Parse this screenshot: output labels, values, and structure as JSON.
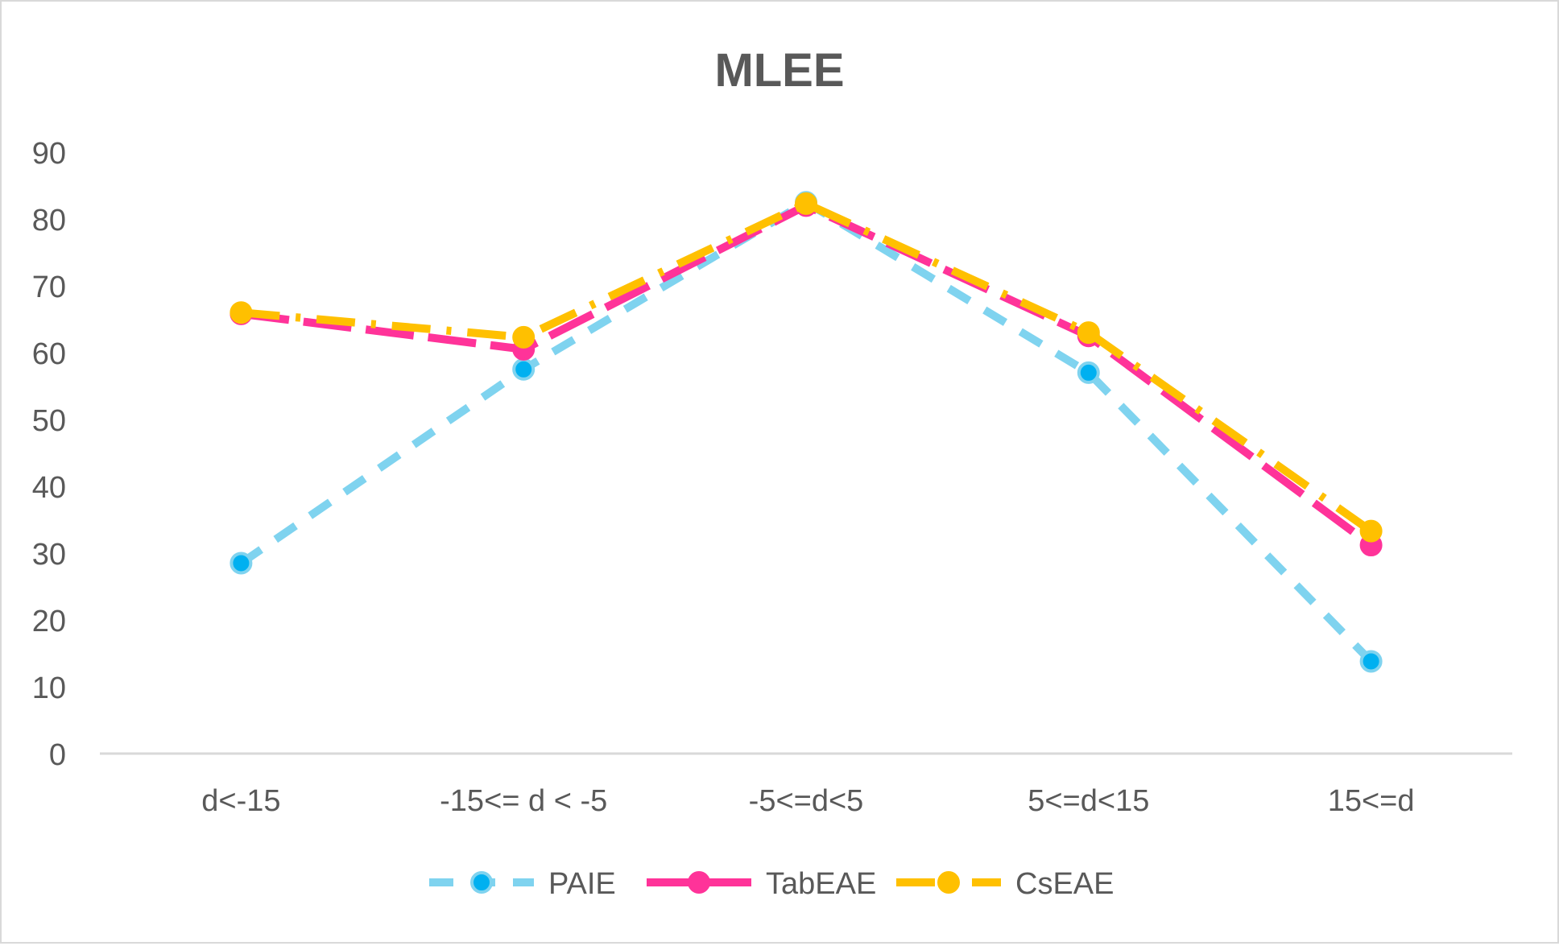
{
  "chart_data": {
    "type": "line",
    "title": "MLEE",
    "xlabel": "",
    "ylabel": "",
    "ylim": [
      0,
      90
    ],
    "ytick_step": 10,
    "grid": false,
    "legend_position": "bottom",
    "categories": [
      "d<-15",
      "-15<= d < -5",
      "-5<=d<5",
      "5<=d<15",
      "15<=d"
    ],
    "series": [
      {
        "name": "PAIE",
        "values": [
          28.5,
          57.5,
          82.5,
          57.0,
          13.8
        ],
        "color": "#7fd3ef",
        "marker_color": "#00b0f0",
        "dash": "dash"
      },
      {
        "name": "TabEAE",
        "values": [
          65.8,
          60.5,
          82.0,
          62.5,
          31.2
        ],
        "color": "#ff3399",
        "marker_color": "#ff3399",
        "dash": "longdash"
      },
      {
        "name": "CsEAE",
        "values": [
          66.0,
          62.3,
          82.3,
          63.0,
          33.3
        ],
        "color": "#ffc000",
        "marker_color": "#ffc000",
        "dash": "dashdot"
      }
    ]
  }
}
